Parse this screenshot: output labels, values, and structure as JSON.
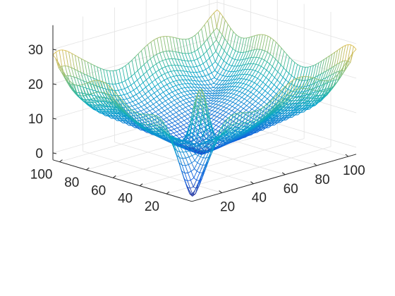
{
  "chart_data": {
    "type": "surface-mesh",
    "title": "",
    "xlabel": "",
    "ylabel": "",
    "zlabel": "",
    "x_range": [
      1,
      105
    ],
    "y_range": [
      1,
      105
    ],
    "z_range": [
      -2,
      37
    ],
    "x_ticks": [
      "20",
      "40",
      "60",
      "80",
      "100"
    ],
    "y_ticks": [
      "20",
      "40",
      "60",
      "80",
      "100"
    ],
    "z_ticks": [
      "0",
      "10",
      "20",
      "30"
    ],
    "grid": true,
    "colormap": "parula",
    "colormap_stops": [
      "#352a87",
      "#0f5cdd",
      "#1481d6",
      "#06a4ca",
      "#2eb7a4",
      "#87bf77",
      "#d1bb59",
      "#fec832",
      "#f9fb0e"
    ],
    "surface_landmarks": {
      "corners_height_approx": 30,
      "front_corner_minimum_approx": 0,
      "central_peak_height_approx": 22,
      "back_corner_peak_height_approx": 39,
      "edge_rim_height_approx": 20
    }
  }
}
